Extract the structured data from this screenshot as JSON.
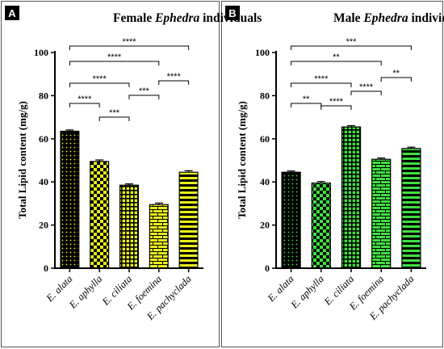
{
  "chart_data": [
    {
      "type": "bar",
      "panel_label": "A",
      "title_parts": [
        "Female ",
        "Ephedra",
        " individuals"
      ],
      "ylabel": "Total Lipid content (mg/g)",
      "xlabel": "",
      "ylim": [
        0,
        100
      ],
      "yticks": [
        0,
        20,
        40,
        60,
        80,
        100
      ],
      "categories": [
        "E. alata",
        "E. aphylla",
        "E. ciliata",
        "E. foemina",
        "E. pachyclada"
      ],
      "values": [
        63.5,
        49.5,
        38.5,
        29.5,
        44.5
      ],
      "errors": [
        0.6,
        0.7,
        0.6,
        0.7,
        0.7
      ],
      "colors": [
        "#e9ef1c",
        "#e9ef1c",
        "#e9ef1c",
        "#e9ef1c",
        "#e9ef1c"
      ],
      "patterns": [
        "dots",
        "checker",
        "grid",
        "brick",
        "hstripes"
      ],
      "significance": [
        {
          "from": 0,
          "to": 1,
          "label": "****"
        },
        {
          "from": 1,
          "to": 2,
          "label": "***"
        },
        {
          "from": 0,
          "to": 2,
          "label": "****"
        },
        {
          "from": 2,
          "to": 3,
          "label": "***"
        },
        {
          "from": 0,
          "to": 3,
          "label": "****"
        },
        {
          "from": 3,
          "to": 4,
          "label": "****"
        },
        {
          "from": 0,
          "to": 4,
          "label": "****"
        }
      ]
    },
    {
      "type": "bar",
      "panel_label": "B",
      "title_parts": [
        "Male ",
        "Ephedra",
        " individuals"
      ],
      "ylabel": "Total Lipid content (mg/g)",
      "xlabel": "",
      "ylim": [
        0,
        100
      ],
      "yticks": [
        0,
        20,
        40,
        60,
        80,
        100
      ],
      "categories": [
        "E. alata",
        "E. aphylla",
        "E. ciliata",
        "E. foemina",
        "E. pachyclada"
      ],
      "values": [
        44.5,
        39.5,
        65.5,
        50.5,
        55.5
      ],
      "errors": [
        0.6,
        0.7,
        0.6,
        0.6,
        0.6
      ],
      "colors": [
        "#3fe03f",
        "#3fe03f",
        "#3fe03f",
        "#3fe03f",
        "#3fe03f"
      ],
      "patterns": [
        "dots",
        "checker",
        "grid",
        "brick",
        "hstripes"
      ],
      "significance": [
        {
          "from": 0,
          "to": 1,
          "label": "**"
        },
        {
          "from": 1,
          "to": 2,
          "label": "****"
        },
        {
          "from": 0,
          "to": 2,
          "label": "****"
        },
        {
          "from": 2,
          "to": 3,
          "label": "****"
        },
        {
          "from": 0,
          "to": 3,
          "label": "**"
        },
        {
          "from": 3,
          "to": 4,
          "label": "**"
        },
        {
          "from": 0,
          "to": 4,
          "label": "***"
        }
      ]
    }
  ]
}
